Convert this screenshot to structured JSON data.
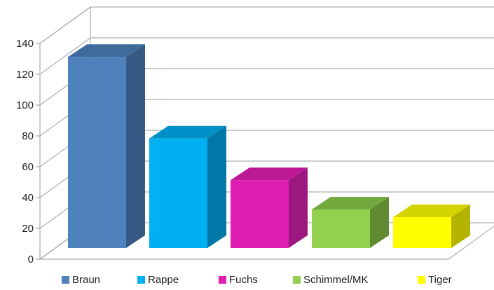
{
  "chart_data": {
    "type": "bar",
    "title": "",
    "xlabel": "",
    "ylabel": "",
    "categories": [
      "Braun",
      "Rappe",
      "Fuchs",
      "Schimmel/MK",
      "Tiger"
    ],
    "values": [
      124,
      71,
      44,
      25,
      20
    ],
    "ylim": [
      0,
      140
    ],
    "yticks": [
      0,
      20,
      40,
      60,
      80,
      100,
      120,
      140
    ],
    "grid": true,
    "three_d": true,
    "legend_position": "bottom",
    "colors": [
      "#4f81bd",
      "#00b0f0",
      "#e11eb4",
      "#92d050",
      "#ffff00"
    ],
    "side_colors": [
      "#365a85",
      "#0077a6",
      "#9c1780",
      "#5f8a31",
      "#b3b300"
    ],
    "top_colors": [
      "#3f6a9c",
      "#0090c8",
      "#bd1896",
      "#73a83e",
      "#d4d400"
    ]
  }
}
